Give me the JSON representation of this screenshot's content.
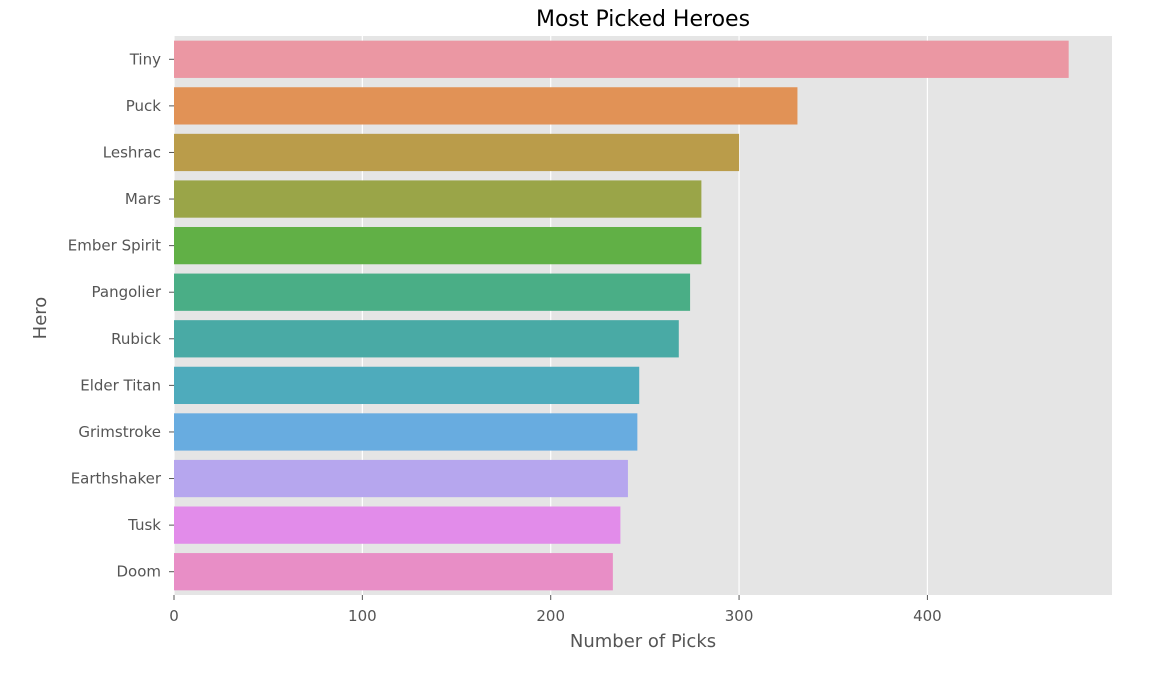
{
  "chart_data": {
    "type": "bar",
    "orientation": "horizontal",
    "title": "Most Picked Heroes",
    "xlabel": "Number of Picks",
    "ylabel": "Hero",
    "xlim": [
      0,
      498
    ],
    "xticks": [
      0,
      100,
      200,
      300,
      400
    ],
    "grid": true,
    "categories": [
      "Tiny",
      "Puck",
      "Leshrac",
      "Mars",
      "Ember Spirit",
      "Pangolier",
      "Rubick",
      "Elder Titan",
      "Grimstroke",
      "Earthshaker",
      "Tusk",
      "Doom"
    ],
    "values": [
      475,
      331,
      300,
      280,
      280,
      274,
      268,
      247,
      246,
      241,
      237,
      233
    ],
    "colors": [
      "#eb97a3",
      "#e19256",
      "#ba9c4a",
      "#9aa548",
      "#61b046",
      "#4aae86",
      "#49aaa5",
      "#4eabbc",
      "#68ace0",
      "#b6a6ee",
      "#e28cea",
      "#e88ec6"
    ]
  }
}
